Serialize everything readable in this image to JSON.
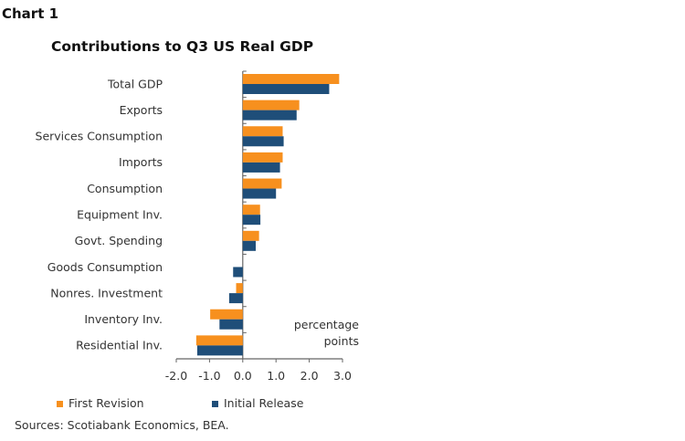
{
  "chart_label": "Chart 1",
  "chart_data": {
    "type": "bar",
    "orientation": "horizontal",
    "title": "Contributions to Q3 US Real GDP",
    "categories": [
      "Total GDP",
      "Exports",
      "Services Consumption",
      "Imports",
      "Consumption",
      "Equipment Inv.",
      "Govt. Spending",
      "Goods Consumption",
      "Nonres. Investment",
      "Inventory Inv.",
      "Residential Inv."
    ],
    "series": [
      {
        "name": "First Revision",
        "color": "#F7901E",
        "values": [
          2.9,
          1.7,
          1.2,
          1.2,
          1.17,
          0.52,
          0.49,
          0.0,
          -0.2,
          -0.98,
          -1.4
        ]
      },
      {
        "name": "Initial Release",
        "color": "#1F4E79",
        "values": [
          2.6,
          1.62,
          1.23,
          1.12,
          1.0,
          0.53,
          0.39,
          -0.29,
          -0.41,
          -0.7,
          -1.37
        ]
      }
    ],
    "xlim": [
      -2.0,
      3.0
    ],
    "xticks": [
      "-2.0",
      "-1.0",
      "0.0",
      "1.0",
      "2.0",
      "3.0"
    ],
    "annotation": [
      "percentage",
      "points"
    ],
    "legend": "bottom",
    "grid": false
  },
  "source": "Sources: Scotiabank Economics, BEA."
}
